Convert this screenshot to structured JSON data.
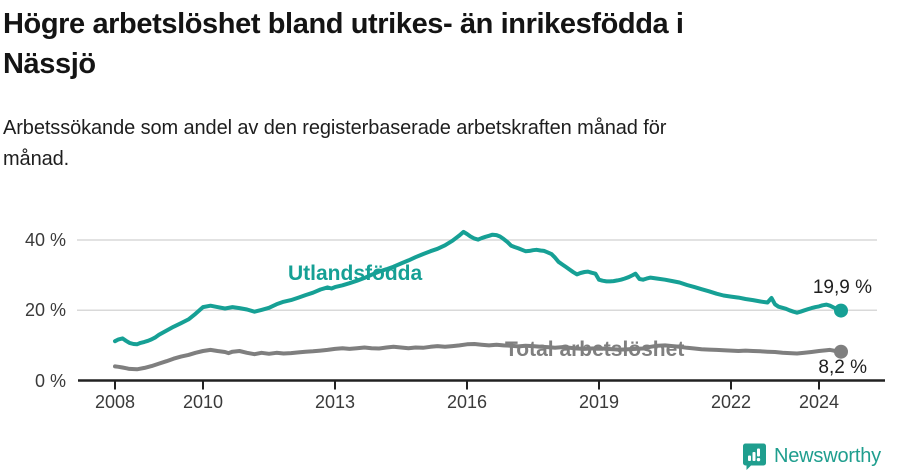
{
  "title": {
    "text": "Högre arbetslöshet bland utrikes- än inrikesfödda i Nässjö",
    "lines": [
      "Högre arbetslöshet bland utrikes- än inrikesfödda i",
      "Nässjö"
    ]
  },
  "subtitle": {
    "text": "Arbetssökande som andel av den registerbaserade arbetskraften månad för månad.",
    "lines": [
      "Arbetssökande som andel av den registerbaserade arbetskraften månad för",
      "månad."
    ]
  },
  "footer": {
    "brand": "Newsworthy",
    "brand_color": "#1f9e8e",
    "logo_icon": "chart-bubble-icon"
  },
  "colors": {
    "axis": "#222222",
    "grid": "#d9d9d9",
    "tick_text": "#3a3a3a",
    "annotation_text": "#1f1f1f"
  },
  "chart_data": {
    "type": "line",
    "title": "Högre arbetslöshet bland utrikes- än inrikesfödda i Nässjö",
    "subtitle": "Arbetssökande som andel av den registerbaserade arbetskraften månad för månad.",
    "xlabel": "",
    "ylabel": "",
    "unit": "%",
    "grid": "horizontal",
    "legend_position": "inline-labels",
    "xlim": [
      2007.9,
      2025.0
    ],
    "ylim": [
      0,
      45
    ],
    "y_ticks": [
      {
        "value": 40,
        "label": "40 %"
      },
      {
        "value": 20,
        "label": "20 %"
      },
      {
        "value": 0,
        "label": "0 %"
      }
    ],
    "x_ticks": [
      {
        "value": 2008,
        "label": "2008"
      },
      {
        "value": 2010,
        "label": "2010"
      },
      {
        "value": 2013,
        "label": "2013"
      },
      {
        "value": 2016,
        "label": "2016"
      },
      {
        "value": 2019,
        "label": "2019"
      },
      {
        "value": 2022,
        "label": "2022"
      },
      {
        "value": 2024,
        "label": "2024"
      }
    ],
    "series": [
      {
        "name": "Utlandsfödda",
        "color": "#16a095",
        "end_value": 19.9,
        "end_label": "19,9 %",
        "points": [
          [
            2008.0,
            11.2
          ],
          [
            2008.08,
            11.7
          ],
          [
            2008.17,
            12.0
          ],
          [
            2008.25,
            11.3
          ],
          [
            2008.33,
            10.7
          ],
          [
            2008.42,
            10.4
          ],
          [
            2008.5,
            10.3
          ],
          [
            2008.58,
            10.7
          ],
          [
            2008.67,
            11.0
          ],
          [
            2008.75,
            11.3
          ],
          [
            2008.83,
            11.7
          ],
          [
            2008.92,
            12.3
          ],
          [
            2009.0,
            13.0
          ],
          [
            2009.17,
            14.2
          ],
          [
            2009.33,
            15.3
          ],
          [
            2009.5,
            16.3
          ],
          [
            2009.67,
            17.4
          ],
          [
            2009.83,
            19.0
          ],
          [
            2010.0,
            20.9
          ],
          [
            2010.17,
            21.3
          ],
          [
            2010.33,
            20.9
          ],
          [
            2010.5,
            20.5
          ],
          [
            2010.67,
            20.9
          ],
          [
            2010.83,
            20.6
          ],
          [
            2011.0,
            20.2
          ],
          [
            2011.17,
            19.6
          ],
          [
            2011.33,
            20.1
          ],
          [
            2011.5,
            20.7
          ],
          [
            2011.67,
            21.7
          ],
          [
            2011.83,
            22.4
          ],
          [
            2012.0,
            22.9
          ],
          [
            2012.17,
            23.6
          ],
          [
            2012.33,
            24.3
          ],
          [
            2012.5,
            25.0
          ],
          [
            2012.67,
            25.9
          ],
          [
            2012.83,
            26.5
          ],
          [
            2012.92,
            26.2
          ],
          [
            2013.0,
            26.6
          ],
          [
            2013.17,
            27.1
          ],
          [
            2013.33,
            27.7
          ],
          [
            2013.5,
            28.4
          ],
          [
            2013.67,
            29.2
          ],
          [
            2013.83,
            30.1
          ],
          [
            2014.0,
            31.0
          ],
          [
            2014.17,
            31.7
          ],
          [
            2014.33,
            32.4
          ],
          [
            2014.5,
            33.3
          ],
          [
            2014.67,
            34.2
          ],
          [
            2014.83,
            35.1
          ],
          [
            2015.0,
            36.0
          ],
          [
            2015.17,
            36.8
          ],
          [
            2015.33,
            37.5
          ],
          [
            2015.5,
            38.5
          ],
          [
            2015.67,
            39.8
          ],
          [
            2015.83,
            41.3
          ],
          [
            2015.92,
            42.3
          ],
          [
            2016.0,
            41.7
          ],
          [
            2016.08,
            41.0
          ],
          [
            2016.17,
            40.4
          ],
          [
            2016.25,
            40.1
          ],
          [
            2016.33,
            40.5
          ],
          [
            2016.42,
            40.9
          ],
          [
            2016.5,
            41.2
          ],
          [
            2016.58,
            41.5
          ],
          [
            2016.67,
            41.4
          ],
          [
            2016.75,
            41.0
          ],
          [
            2016.83,
            40.3
          ],
          [
            2016.92,
            39.4
          ],
          [
            2017.0,
            38.4
          ],
          [
            2017.08,
            38.0
          ],
          [
            2017.17,
            37.6
          ],
          [
            2017.25,
            37.2
          ],
          [
            2017.33,
            36.8
          ],
          [
            2017.42,
            36.9
          ],
          [
            2017.5,
            37.1
          ],
          [
            2017.58,
            37.2
          ],
          [
            2017.67,
            37.0
          ],
          [
            2017.75,
            36.9
          ],
          [
            2017.83,
            36.5
          ],
          [
            2017.92,
            36.0
          ],
          [
            2018.0,
            35.0
          ],
          [
            2018.08,
            33.8
          ],
          [
            2018.17,
            33.0
          ],
          [
            2018.25,
            32.3
          ],
          [
            2018.33,
            31.6
          ],
          [
            2018.42,
            30.8
          ],
          [
            2018.5,
            30.2
          ],
          [
            2018.58,
            30.6
          ],
          [
            2018.67,
            30.9
          ],
          [
            2018.75,
            31.0
          ],
          [
            2018.83,
            30.7
          ],
          [
            2018.92,
            30.4
          ],
          [
            2019.0,
            28.7
          ],
          [
            2019.08,
            28.4
          ],
          [
            2019.17,
            28.2
          ],
          [
            2019.25,
            28.2
          ],
          [
            2019.33,
            28.3
          ],
          [
            2019.42,
            28.5
          ],
          [
            2019.5,
            28.7
          ],
          [
            2019.58,
            29.0
          ],
          [
            2019.67,
            29.4
          ],
          [
            2019.75,
            29.9
          ],
          [
            2019.83,
            30.4
          ],
          [
            2019.92,
            28.9
          ],
          [
            2020.0,
            28.7
          ],
          [
            2020.08,
            29.0
          ],
          [
            2020.17,
            29.3
          ],
          [
            2020.33,
            29.0
          ],
          [
            2020.5,
            28.7
          ],
          [
            2020.67,
            28.3
          ],
          [
            2020.83,
            27.9
          ],
          [
            2021.0,
            27.2
          ],
          [
            2021.17,
            26.6
          ],
          [
            2021.33,
            26.0
          ],
          [
            2021.5,
            25.4
          ],
          [
            2021.67,
            24.7
          ],
          [
            2021.83,
            24.2
          ],
          [
            2022.0,
            23.9
          ],
          [
            2022.17,
            23.6
          ],
          [
            2022.33,
            23.2
          ],
          [
            2022.5,
            22.9
          ],
          [
            2022.67,
            22.5
          ],
          [
            2022.83,
            22.2
          ],
          [
            2022.92,
            23.5
          ],
          [
            2023.0,
            21.7
          ],
          [
            2023.08,
            21.0
          ],
          [
            2023.17,
            20.7
          ],
          [
            2023.25,
            20.4
          ],
          [
            2023.33,
            20.0
          ],
          [
            2023.42,
            19.6
          ],
          [
            2023.5,
            19.3
          ],
          [
            2023.58,
            19.6
          ],
          [
            2023.67,
            20.0
          ],
          [
            2023.75,
            20.3
          ],
          [
            2023.83,
            20.6
          ],
          [
            2023.92,
            20.9
          ],
          [
            2024.0,
            21.1
          ],
          [
            2024.08,
            21.4
          ],
          [
            2024.17,
            21.6
          ],
          [
            2024.25,
            21.3
          ],
          [
            2024.33,
            20.8
          ],
          [
            2024.42,
            20.3
          ],
          [
            2024.5,
            19.9
          ]
        ]
      },
      {
        "name": "Total arbetslöshet",
        "color": "#7f7f7f",
        "end_value": 8.2,
        "end_label": "8,2 %",
        "points": [
          [
            2008.0,
            4.0
          ],
          [
            2008.08,
            3.9
          ],
          [
            2008.17,
            3.7
          ],
          [
            2008.25,
            3.5
          ],
          [
            2008.33,
            3.3
          ],
          [
            2008.5,
            3.2
          ],
          [
            2008.67,
            3.6
          ],
          [
            2008.83,
            4.1
          ],
          [
            2009.0,
            4.8
          ],
          [
            2009.17,
            5.5
          ],
          [
            2009.33,
            6.2
          ],
          [
            2009.5,
            6.8
          ],
          [
            2009.67,
            7.3
          ],
          [
            2009.83,
            7.9
          ],
          [
            2010.0,
            8.4
          ],
          [
            2010.17,
            8.7
          ],
          [
            2010.33,
            8.4
          ],
          [
            2010.5,
            8.1
          ],
          [
            2010.58,
            7.8
          ],
          [
            2010.67,
            8.2
          ],
          [
            2010.83,
            8.4
          ],
          [
            2011.0,
            7.9
          ],
          [
            2011.17,
            7.5
          ],
          [
            2011.33,
            7.9
          ],
          [
            2011.5,
            7.6
          ],
          [
            2011.67,
            7.9
          ],
          [
            2011.83,
            7.7
          ],
          [
            2012.0,
            7.8
          ],
          [
            2012.17,
            8.0
          ],
          [
            2012.33,
            8.2
          ],
          [
            2012.5,
            8.3
          ],
          [
            2012.67,
            8.5
          ],
          [
            2012.83,
            8.7
          ],
          [
            2013.0,
            9.0
          ],
          [
            2013.17,
            9.2
          ],
          [
            2013.33,
            9.0
          ],
          [
            2013.5,
            9.2
          ],
          [
            2013.67,
            9.4
          ],
          [
            2013.83,
            9.2
          ],
          [
            2014.0,
            9.1
          ],
          [
            2014.17,
            9.4
          ],
          [
            2014.33,
            9.6
          ],
          [
            2014.5,
            9.4
          ],
          [
            2014.67,
            9.2
          ],
          [
            2014.83,
            9.4
          ],
          [
            2015.0,
            9.3
          ],
          [
            2015.17,
            9.6
          ],
          [
            2015.33,
            9.8
          ],
          [
            2015.5,
            9.6
          ],
          [
            2015.67,
            9.8
          ],
          [
            2015.83,
            10.0
          ],
          [
            2016.0,
            10.3
          ],
          [
            2016.17,
            10.4
          ],
          [
            2016.33,
            10.2
          ],
          [
            2016.5,
            10.0
          ],
          [
            2016.67,
            10.2
          ],
          [
            2016.83,
            10.0
          ],
          [
            2017.0,
            9.9
          ],
          [
            2017.17,
            9.7
          ],
          [
            2017.33,
            9.9
          ],
          [
            2017.5,
            9.8
          ],
          [
            2017.67,
            9.6
          ],
          [
            2017.83,
            9.5
          ],
          [
            2018.0,
            9.3
          ],
          [
            2018.17,
            9.5
          ],
          [
            2018.33,
            9.3
          ],
          [
            2018.5,
            9.1
          ],
          [
            2018.67,
            9.0
          ],
          [
            2018.83,
            9.1
          ],
          [
            2019.0,
            9.2
          ],
          [
            2019.17,
            9.0
          ],
          [
            2019.33,
            8.9
          ],
          [
            2019.5,
            8.8
          ],
          [
            2019.67,
            8.9
          ],
          [
            2019.83,
            9.0
          ],
          [
            2020.0,
            9.1
          ],
          [
            2020.17,
            9.6
          ],
          [
            2020.33,
            9.9
          ],
          [
            2020.5,
            10.0
          ],
          [
            2020.67,
            9.8
          ],
          [
            2020.83,
            9.6
          ],
          [
            2021.0,
            9.3
          ],
          [
            2021.17,
            9.1
          ],
          [
            2021.33,
            8.9
          ],
          [
            2021.5,
            8.8
          ],
          [
            2021.67,
            8.7
          ],
          [
            2021.83,
            8.6
          ],
          [
            2022.0,
            8.5
          ],
          [
            2022.17,
            8.4
          ],
          [
            2022.33,
            8.5
          ],
          [
            2022.5,
            8.4
          ],
          [
            2022.67,
            8.3
          ],
          [
            2022.83,
            8.2
          ],
          [
            2023.0,
            8.1
          ],
          [
            2023.17,
            7.9
          ],
          [
            2023.33,
            7.8
          ],
          [
            2023.5,
            7.7
          ],
          [
            2023.67,
            7.9
          ],
          [
            2023.83,
            8.1
          ],
          [
            2024.0,
            8.4
          ],
          [
            2024.17,
            8.6
          ],
          [
            2024.25,
            8.7
          ],
          [
            2024.33,
            8.5
          ],
          [
            2024.42,
            8.3
          ],
          [
            2024.5,
            8.2
          ]
        ]
      }
    ]
  }
}
